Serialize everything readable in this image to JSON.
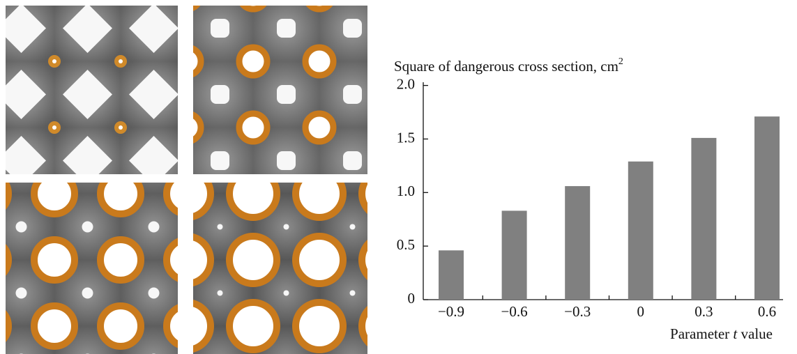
{
  "chart_data": {
    "type": "bar",
    "title": "Square of dangerous cross section, cm",
    "title_superscript": "2",
    "x_label": [
      "Parameter ",
      "t",
      " value"
    ],
    "categories": [
      "−0.9",
      "−0.6",
      "−0.3",
      "0",
      "0.3",
      "0.6"
    ],
    "values": [
      0.46,
      0.83,
      1.06,
      1.29,
      1.51,
      1.71
    ],
    "color": "#808080",
    "ylim": [
      0,
      2.03
    ],
    "yticks": [
      0,
      0.5,
      {
        "value": 1.0,
        "label": "1.0"
      },
      1.5,
      {
        "value": 2.0,
        "label": "2.0"
      }
    ],
    "grid": false
  }
}
